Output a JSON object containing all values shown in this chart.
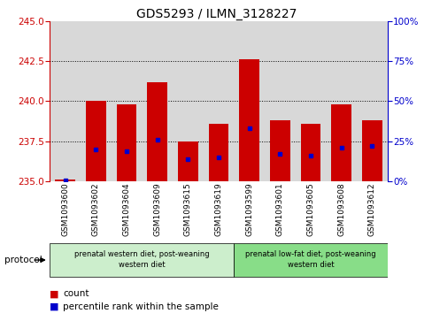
{
  "title": "GDS5293 / ILMN_3128227",
  "categories": [
    "GSM1093600",
    "GSM1093602",
    "GSM1093604",
    "GSM1093609",
    "GSM1093615",
    "GSM1093619",
    "GSM1093599",
    "GSM1093601",
    "GSM1093605",
    "GSM1093608",
    "GSM1093612"
  ],
  "count_values": [
    235.1,
    240.0,
    239.8,
    241.2,
    237.5,
    238.6,
    242.6,
    238.8,
    238.6,
    239.8,
    238.8
  ],
  "percentile_values": [
    0.5,
    20.0,
    19.0,
    26.0,
    14.0,
    15.0,
    33.0,
    17.0,
    16.0,
    21.0,
    22.0
  ],
  "base_value": 235.0,
  "ylim_left": [
    235,
    245
  ],
  "ylim_right": [
    0,
    100
  ],
  "yticks_left": [
    235,
    237.5,
    240,
    242.5,
    245
  ],
  "yticks_right": [
    0,
    25,
    50,
    75,
    100
  ],
  "group1_label": "prenatal western diet, post-weaning\nwestern diet",
  "group2_label": "prenatal low-fat diet, post-weaning\nwestern diet",
  "group1_indices": [
    0,
    1,
    2,
    3,
    4,
    5
  ],
  "group2_indices": [
    6,
    7,
    8,
    9,
    10
  ],
  "protocol_label": "protocol",
  "legend_count_label": "count",
  "legend_pct_label": "percentile rank within the sample",
  "bar_color": "#cc0000",
  "pct_color": "#0000cc",
  "group1_bg": "#cceecc",
  "group2_bg": "#88dd88",
  "axis_bg": "#d8d8d8",
  "grid_color": "#000000",
  "title_fontsize": 10,
  "tick_fontsize": 7.5,
  "label_fontsize": 6.5,
  "bar_width": 0.65
}
